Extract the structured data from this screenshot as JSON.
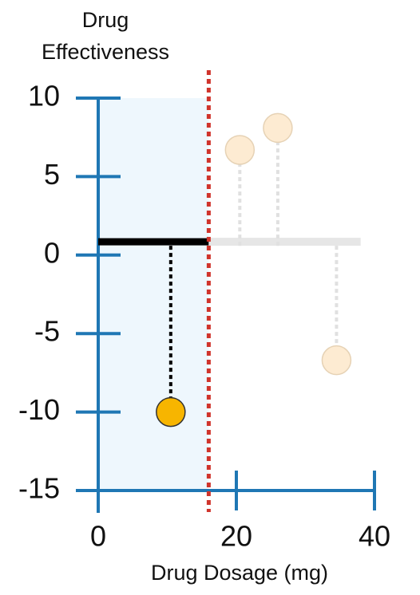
{
  "chart_data": {
    "type": "scatter",
    "ylabel": [
      "Drug",
      "Effectiveness"
    ],
    "xlabel": "Drug Dosage (mg)",
    "xlim": [
      0,
      40
    ],
    "xticks": [
      0,
      20,
      40
    ],
    "ylim": [
      -15,
      10
    ],
    "yticks": [
      10,
      5,
      0,
      -5,
      -10,
      -15
    ],
    "x": [
      10.5,
      20.5,
      26,
      34.5
    ],
    "values": [
      -10,
      6.7,
      8.1,
      -6.7
    ],
    "point_colors": [
      "#f7b500",
      "#fdebd2",
      "#fdebd2",
      "#fdebd2"
    ],
    "residual_colors": [
      "#000000",
      "#e0e0e0",
      "#e0e0e0",
      "#e0e0e0"
    ],
    "threshold": 16,
    "threshold_color": "#d0342c",
    "shade_color": "#eef7fd",
    "axis_color": "#1f77b4",
    "segments": [
      {
        "x": [
          0,
          16
        ],
        "value": 0.85,
        "color": "#000000"
      },
      {
        "x": [
          16,
          38
        ],
        "value": 0.85,
        "color": "#e6e6e6"
      }
    ]
  }
}
